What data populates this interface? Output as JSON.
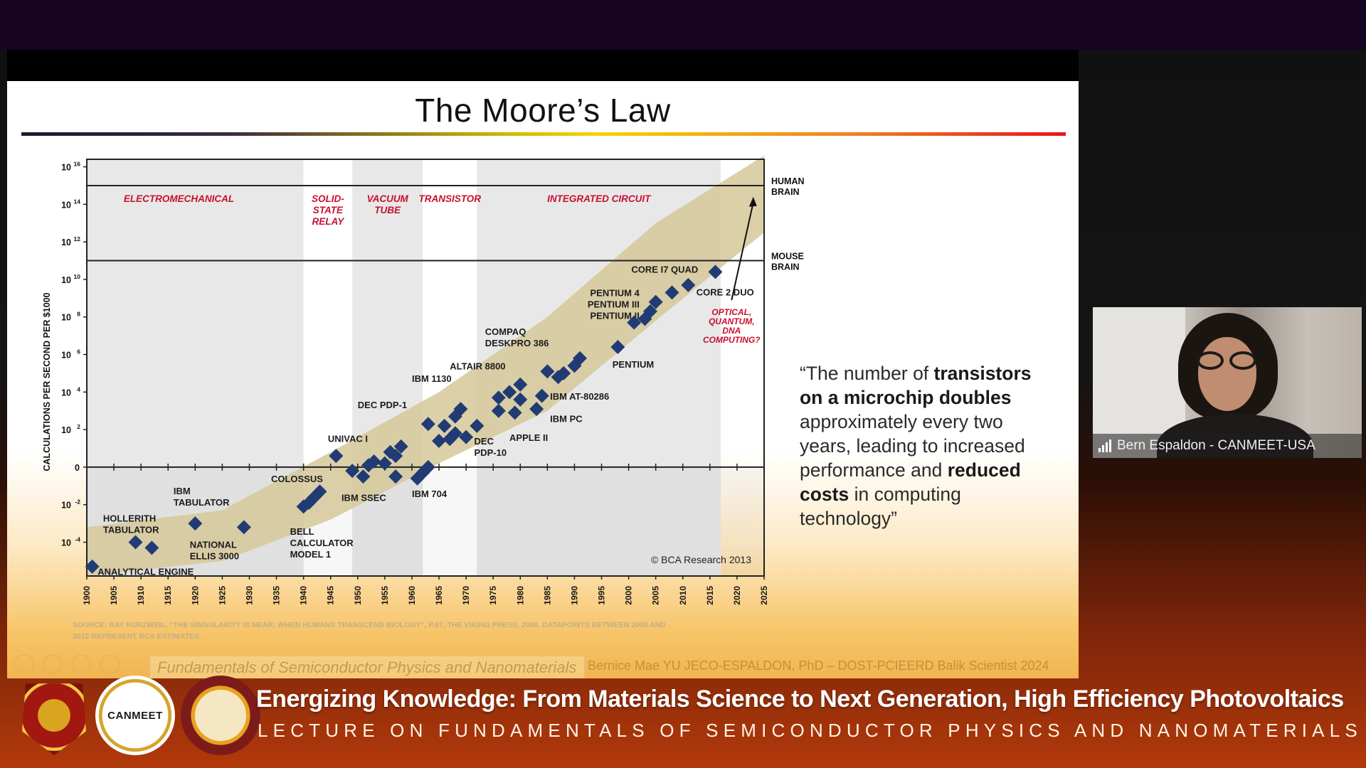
{
  "slide": {
    "title": "The Moore’s Law",
    "quote_parts": [
      {
        "text": "“The number of ",
        "bold": false
      },
      {
        "text": "transistors on a microchip doubles",
        "bold": true
      },
      {
        "text": " approximately every two years, leading to increased performance and ",
        "bold": false
      },
      {
        "text": "reduced costs",
        "bold": true
      },
      {
        "text": " in computing technology”",
        "bold": false
      }
    ],
    "footer_course": "Fundamentals of Semiconductor Physics and Nanomaterials",
    "footer_author": "Bernice Mae YU JECO-ESPALDON, PhD – DOST-PCIEERD Balik Scientist 2024"
  },
  "chart_data": {
    "type": "scatter",
    "ylabel": "CALCULATIONS PER SECOND PER $1000",
    "y_log_scale": true,
    "y_ticks": [
      {
        "exp": 16,
        "label": "10",
        "sup": "16"
      },
      {
        "exp": 14,
        "label": "10",
        "sup": "14"
      },
      {
        "exp": 12,
        "label": "10",
        "sup": "12"
      },
      {
        "exp": 10,
        "label": "10",
        "sup": "10"
      },
      {
        "exp": 8,
        "label": "10",
        "sup": "8"
      },
      {
        "exp": 6,
        "label": "10",
        "sup": "6"
      },
      {
        "exp": 4,
        "label": "10",
        "sup": "4"
      },
      {
        "exp": 2,
        "label": "10",
        "sup": "2"
      },
      {
        "exp": 0,
        "label": "0",
        "sup": ""
      },
      {
        "exp": -2,
        "label": "10",
        "sup": "-2"
      },
      {
        "exp": -4,
        "label": "10",
        "sup": "-4"
      }
    ],
    "x_ticks": [
      "1900",
      "1905",
      "1910",
      "1915",
      "1920",
      "1925",
      "1930",
      "1935",
      "1940",
      "1945",
      "1950",
      "1955",
      "1960",
      "1965",
      "1970",
      "1975",
      "1980",
      "1985",
      "1990",
      "1995",
      "2000",
      "2005",
      "2010",
      "2015",
      "2020",
      "2025"
    ],
    "xlim": [
      1900,
      2025
    ],
    "eras": [
      {
        "name": "ELECTROMECHANICAL",
        "start": 1900,
        "end": 1940,
        "shade": true
      },
      {
        "name": "SOLID-STATE RELAY",
        "start": 1940,
        "end": 1949,
        "shade": false
      },
      {
        "name": "VACUUM TUBE",
        "start": 1949,
        "end": 1962,
        "shade": true
      },
      {
        "name": "TRANSISTOR",
        "start": 1962,
        "end": 1972,
        "shade": false
      },
      {
        "name": "INTEGRATED CIRCUIT",
        "start": 1972,
        "end": 2017,
        "shade": true
      }
    ],
    "era_labels": [
      {
        "lines": [
          "ELECTROMECHANICAL"
        ],
        "x": 1917
      },
      {
        "lines": [
          "SOLID-",
          "STATE",
          "RELAY"
        ],
        "x": 1944.5
      },
      {
        "lines": [
          "VACUUM",
          "TUBE"
        ],
        "x": 1955.5
      },
      {
        "lines": [
          "TRANSISTOR"
        ],
        "x": 1967
      },
      {
        "lines": [
          "INTEGRATED CIRCUIT"
        ],
        "x": 1994.5
      }
    ],
    "reference_lines": [
      {
        "label": [
          "HUMAN",
          "BRAIN"
        ],
        "exp": 15
      },
      {
        "label": [
          "MOUSE",
          "BRAIN"
        ],
        "exp": 11
      }
    ],
    "trend_band": [
      {
        "x": 1900,
        "lo": -5.8,
        "hi": -3.2
      },
      {
        "x": 1925,
        "lo": -5.0,
        "hi": -2.3
      },
      {
        "x": 1945,
        "lo": -2.8,
        "hi": 0.8
      },
      {
        "x": 1965,
        "lo": 0.2,
        "hi": 4.0
      },
      {
        "x": 1985,
        "lo": 3.0,
        "hi": 8.0
      },
      {
        "x": 2005,
        "lo": 7.8,
        "hi": 13.0
      },
      {
        "x": 2025,
        "lo": 12.5,
        "hi": 16.6
      }
    ],
    "points": [
      {
        "x": 1901,
        "y": -5.3
      },
      {
        "x": 1909,
        "y": -4.0
      },
      {
        "x": 1912,
        "y": -4.3
      },
      {
        "x": 1920,
        "y": -3.0
      },
      {
        "x": 1929,
        "y": -3.2
      },
      {
        "x": 1940,
        "y": -2.1
      },
      {
        "x": 1941,
        "y": -1.9
      },
      {
        "x": 1942,
        "y": -1.6
      },
      {
        "x": 1943,
        "y": -1.3
      },
      {
        "x": 1946,
        "y": 0.6
      },
      {
        "x": 1949,
        "y": -0.2
      },
      {
        "x": 1951,
        "y": -0.5
      },
      {
        "x": 1952,
        "y": 0.1
      },
      {
        "x": 1953,
        "y": 0.3
      },
      {
        "x": 1955,
        "y": 0.2
      },
      {
        "x": 1956,
        "y": 0.8
      },
      {
        "x": 1957,
        "y": -0.5
      },
      {
        "x": 1957,
        "y": 0.6
      },
      {
        "x": 1958,
        "y": 1.1
      },
      {
        "x": 1961,
        "y": -0.6
      },
      {
        "x": 1962,
        "y": -0.3
      },
      {
        "x": 1963,
        "y": 0.0
      },
      {
        "x": 1963,
        "y": 2.3
      },
      {
        "x": 1965,
        "y": 1.4
      },
      {
        "x": 1966,
        "y": 2.2
      },
      {
        "x": 1967,
        "y": 1.5
      },
      {
        "x": 1968,
        "y": 2.7
      },
      {
        "x": 1968,
        "y": 1.8
      },
      {
        "x": 1969,
        "y": 3.1
      },
      {
        "x": 1970,
        "y": 1.6
      },
      {
        "x": 1972,
        "y": 2.2
      },
      {
        "x": 1976,
        "y": 3.0
      },
      {
        "x": 1976,
        "y": 3.7
      },
      {
        "x": 1978,
        "y": 4.0
      },
      {
        "x": 1979,
        "y": 2.9
      },
      {
        "x": 1980,
        "y": 3.6
      },
      {
        "x": 1980,
        "y": 4.4
      },
      {
        "x": 1983,
        "y": 3.1
      },
      {
        "x": 1984,
        "y": 3.8
      },
      {
        "x": 1985,
        "y": 5.1
      },
      {
        "x": 1987,
        "y": 4.8
      },
      {
        "x": 1988,
        "y": 5.0
      },
      {
        "x": 1990,
        "y": 5.4
      },
      {
        "x": 1991,
        "y": 5.8
      },
      {
        "x": 1998,
        "y": 6.4
      },
      {
        "x": 2001,
        "y": 7.7
      },
      {
        "x": 2003,
        "y": 7.9
      },
      {
        "x": 2004,
        "y": 8.3
      },
      {
        "x": 2005,
        "y": 8.8
      },
      {
        "x": 2008,
        "y": 9.3
      },
      {
        "x": 2011,
        "y": 9.7
      },
      {
        "x": 2016,
        "y": 10.4
      }
    ],
    "point_labels": [
      {
        "lines": [
          "ANALYTICAL ENGINE"
        ],
        "x": 1902,
        "y": -5.75,
        "anchor": "start"
      },
      {
        "lines": [
          "HOLLERITH",
          "TABULATOR"
        ],
        "x": 1903,
        "y": -2.9,
        "anchor": "start"
      },
      {
        "lines": [
          "IBM",
          "TABULATOR"
        ],
        "x": 1916,
        "y": -1.45,
        "anchor": "start"
      },
      {
        "lines": [
          "NATIONAL",
          "ELLIS 3000"
        ],
        "x": 1919,
        "y": -4.3,
        "anchor": "start"
      },
      {
        "lines": [
          "COLOSSUS"
        ],
        "x": 1934,
        "y": -0.8,
        "anchor": "start"
      },
      {
        "lines": [
          "BELL",
          "CALCULATOR",
          "MODEL 1"
        ],
        "x": 1937.5,
        "y": -3.6,
        "anchor": "start"
      },
      {
        "lines": [
          "UNIVAC I"
        ],
        "x": 1944.5,
        "y": 1.35,
        "anchor": "start"
      },
      {
        "lines": [
          "IBM SSEC"
        ],
        "x": 1947,
        "y": -1.8,
        "anchor": "start"
      },
      {
        "lines": [
          "DEC PDP-1"
        ],
        "x": 1950,
        "y": 3.15,
        "anchor": "start"
      },
      {
        "lines": [
          "IBM 704"
        ],
        "x": 1960,
        "y": -1.6,
        "anchor": "start"
      },
      {
        "lines": [
          "IBM 1130"
        ],
        "x": 1960,
        "y": 4.55,
        "anchor": "start"
      },
      {
        "lines": [
          "DEC",
          "PDP-10"
        ],
        "x": 1971.5,
        "y": 1.2,
        "anchor": "start"
      },
      {
        "lines": [
          "ALTAIR 8800"
        ],
        "x": 1967,
        "y": 5.2,
        "anchor": "start"
      },
      {
        "lines": [
          "COMPAQ",
          "DESKPRO 386"
        ],
        "x": 1973.5,
        "y": 7.05,
        "anchor": "start"
      },
      {
        "lines": [
          "APPLE II"
        ],
        "x": 1978,
        "y": 1.4,
        "anchor": "start"
      },
      {
        "lines": [
          "IBM PC"
        ],
        "x": 1985.5,
        "y": 2.4,
        "anchor": "start"
      },
      {
        "lines": [
          "IBM AT-80286"
        ],
        "x": 1985.5,
        "y": 3.6,
        "anchor": "start"
      },
      {
        "lines": [
          "PENTIUM"
        ],
        "x": 1997,
        "y": 5.3,
        "anchor": "start"
      },
      {
        "lines": [
          "PENTIUM 4",
          "PENTIUM III",
          "PENTIUM II"
        ],
        "x": 2002,
        "y": 9.1,
        "anchor": "end"
      },
      {
        "lines": [
          "CORE I7 QUAD"
        ],
        "x": 2000.5,
        "y": 10.35,
        "anchor": "start"
      },
      {
        "lines": [
          "CORE 2 DUO"
        ],
        "x": 2012.5,
        "y": 9.15,
        "anchor": "start"
      },
      {
        "lines": [
          "OPTICAL,",
          "QUANTUM,",
          "DNA",
          "COMPUTING?"
        ],
        "x": 2019,
        "y": 8.1,
        "anchor": "middle"
      }
    ],
    "credit": "© BCA Research 2013",
    "source": "SOURCE: RAY KURZWEIL, \"THE SINGULARITY IS NEAR: WHEN HUMANS TRANSCEND BIOLOGY\", P.67, THE VIKING PRESS, 2006. DATAPOINTS BETWEEN 2000 AND 2012 REPRESENT BCA ESTIMATES.",
    "colors": {
      "point": "#213c74",
      "band": "#d6c89a",
      "era_text": "#c8102e",
      "shade": "#e8e8e8"
    }
  },
  "webcam": {
    "name": "Bern Espaldon - CANMEET-USA",
    "signal_icon": "signal-bars-icon"
  },
  "banner": {
    "logos": [
      "university-of-san-agustin-logo",
      "canmeet-logo",
      "balik-scientist-program-logo"
    ],
    "canmeet_text": "CANMEET",
    "title": "Energizing Knowledge: From Materials Science to Next Generation, High Efficiency Photovoltaics",
    "subtitle": "LECTURE ON FUNDAMENTALS OF SEMICONDUCTOR PHYSICS AND NANOMATERIALS"
  }
}
